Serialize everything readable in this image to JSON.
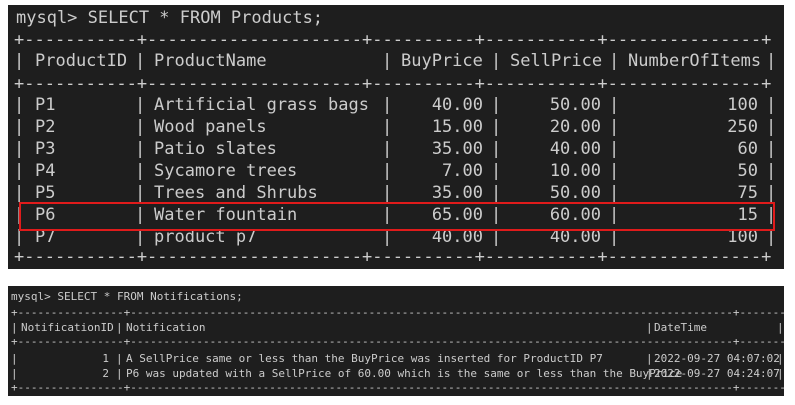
{
  "products": {
    "command": "mysql> SELECT * FROM Products;",
    "border_line": "+-----------+---------------------+----------+-----------+---------------+",
    "columns": [
      "ProductID",
      "ProductName",
      "BuyPrice",
      "SellPrice",
      "NumberOfItems"
    ],
    "rows": [
      [
        "P1",
        "Artificial grass bags",
        "40.00",
        "50.00",
        "100"
      ],
      [
        "P2",
        "Wood panels",
        "15.00",
        "20.00",
        "250"
      ],
      [
        "P3",
        "Patio slates",
        "35.00",
        "40.00",
        "60"
      ],
      [
        "P4",
        "Sycamore trees",
        "7.00",
        "10.00",
        "50"
      ],
      [
        "P5",
        "Trees and Shrubs",
        "35.00",
        "50.00",
        "75"
      ],
      [
        "P6",
        "Water fountain",
        "65.00",
        "60.00",
        "15"
      ],
      [
        "P7",
        "product p7",
        "40.00",
        "40.00",
        "100"
      ]
    ],
    "highlighted_row": "P6",
    "highlight_color": "#e01b1b"
  },
  "notifications": {
    "command": "mysql> SELECT * FROM Notifications;",
    "border_line": "+----------------+-------------------------------------------------------------------------------------------+---------------------+",
    "columns": [
      "NotificationID",
      "Notification",
      "DateTime"
    ],
    "rows": [
      [
        "1",
        "A SellPrice same or less than the BuyPrice was inserted for ProductID P7",
        "2022-09-27 04:07:02"
      ],
      [
        "2",
        "P6 was updated with a SellPrice of 60.00 which is the same or less than the BuyPrice",
        "2022-09-27 04:24:07"
      ]
    ]
  },
  "theme": {
    "terminal_bg": "#1e1e1e",
    "terminal_fg": "#cccccc"
  }
}
